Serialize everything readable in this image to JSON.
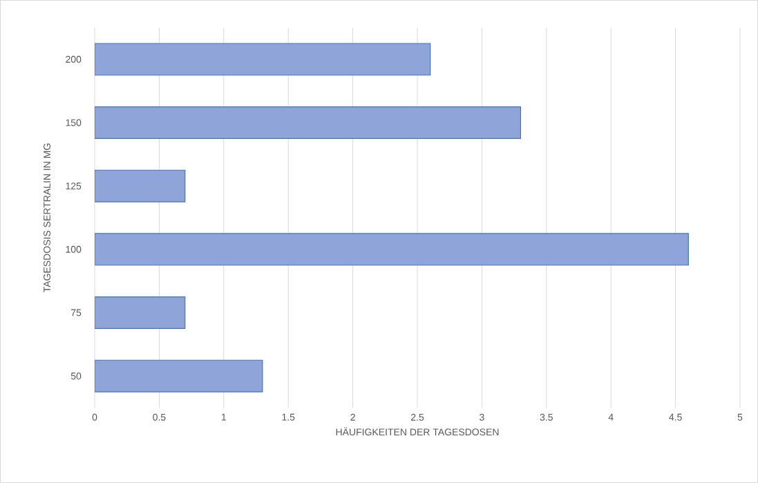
{
  "chart_data": {
    "type": "bar",
    "orientation": "horizontal",
    "categories": [
      "200",
      "150",
      "125",
      "100",
      "75",
      "50"
    ],
    "values": [
      2.6,
      3.3,
      0.7,
      4.6,
      0.7,
      1.3
    ],
    "color": "#8fa5da",
    "xlim": [
      0,
      5
    ],
    "xticks": [
      0,
      0.5,
      1,
      1.5,
      2,
      2.5,
      3,
      3.5,
      4,
      4.5,
      5
    ],
    "xlabel": "HÄUFIGKEITEN DER TAGESDOSEN",
    "ylabel": "TAGESDOSIS SERTRALIN IN MG",
    "grid": "x"
  }
}
